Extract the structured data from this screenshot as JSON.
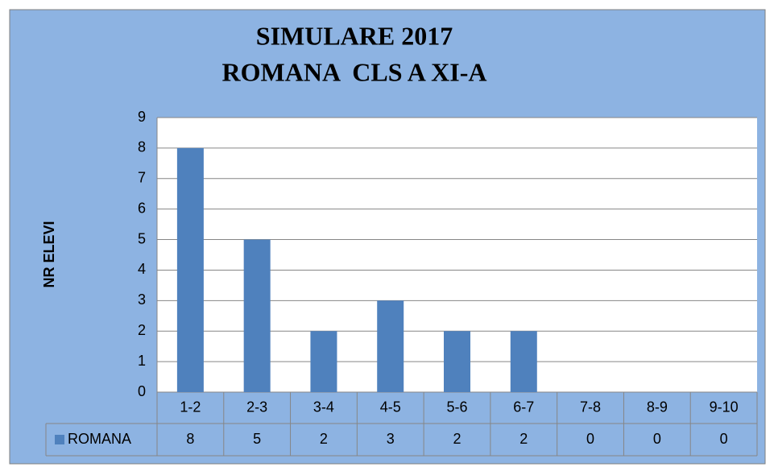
{
  "chart_data": {
    "type": "bar",
    "title": [
      "SIMULARE 2017",
      "ROMANA  CLS A XI-A"
    ],
    "y_label": "NR ELEVI",
    "categories": [
      "1-2",
      "2-3",
      "3-4",
      "4-5",
      "5-6",
      "6-7",
      "7-8",
      "8-9",
      "9-10"
    ],
    "series": [
      {
        "name": "ROMANA",
        "color": "#4f81bd",
        "values": [
          8,
          5,
          2,
          3,
          2,
          2,
          0,
          0,
          0
        ]
      }
    ],
    "ylim": [
      0,
      9
    ],
    "yticks": [
      0,
      1,
      2,
      3,
      4,
      5,
      6,
      7,
      8,
      9
    ],
    "grid": true,
    "data_table": true
  }
}
